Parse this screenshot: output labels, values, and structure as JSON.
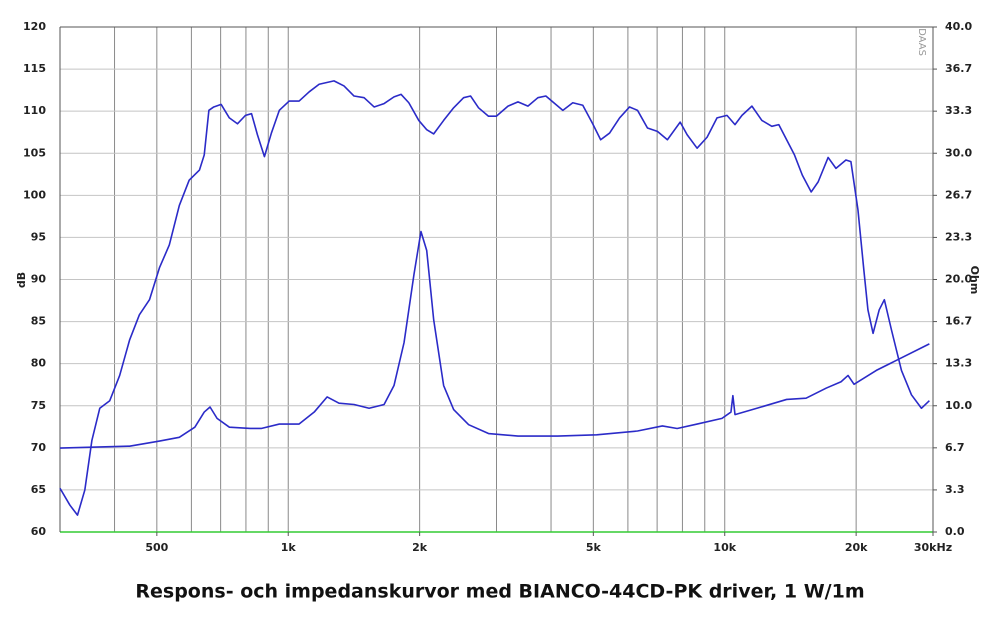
{
  "chart_data": {
    "type": "line",
    "title": "Respons- och impedanskurvor med BIANCO-44CD-PK driver, 1 W/1m",
    "y_label": "dB",
    "y2_label": "Ohm",
    "watermark": "DAAS",
    "log_x": true,
    "xlim": [
      300,
      30000
    ],
    "xticks": [
      500,
      {
        "value": 1000,
        "label": "1k"
      },
      {
        "value": 2000,
        "label": "2k"
      },
      {
        "value": 5000,
        "label": "5k"
      },
      {
        "value": 10000,
        "label": "10k"
      },
      {
        "value": 20000,
        "label": "20k"
      },
      {
        "value": 30000,
        "label": "30kHz"
      }
    ],
    "xgrid": [
      300,
      400,
      500,
      600,
      700,
      800,
      900,
      1000,
      2000,
      3000,
      4000,
      5000,
      6000,
      7000,
      8000,
      9000,
      10000,
      20000,
      30000
    ],
    "ylim": [
      60,
      120
    ],
    "yticks": [
      60,
      65,
      70,
      75,
      80,
      85,
      90,
      95,
      100,
      105,
      110,
      115,
      120
    ],
    "y2lim": [
      0,
      40
    ],
    "y2ticks": [
      {
        "value": 0,
        "label": "0.0"
      },
      {
        "value": 3.333,
        "label": "3.3"
      },
      {
        "value": 6.667,
        "label": "6.7"
      },
      {
        "value": 10,
        "label": "10.0"
      },
      {
        "value": 13.333,
        "label": "13.3"
      },
      {
        "value": 16.667,
        "label": "16.7"
      },
      {
        "value": 20,
        "label": "20.0"
      },
      {
        "value": 23.333,
        "label": "23.3"
      },
      {
        "value": 26.667,
        "label": "26.7"
      },
      {
        "value": 30,
        "label": "30.0"
      },
      {
        "value": 33.333,
        "label": "33.3"
      },
      {
        "value": 36.667,
        "label": "36.7"
      },
      {
        "value": 40,
        "label": "40.0"
      }
    ],
    "grid": true,
    "series": [
      {
        "color": "#2b2bc8",
        "x": [
          300,
          316,
          329,
          342,
          355,
          370,
          390,
          411,
          433,
          456,
          481,
          507,
          534,
          563,
          593,
          626,
          642,
          658,
          675,
          702,
          733,
          765,
          798,
          824,
          850,
          882,
          915,
          954,
          1005,
          1059,
          1117,
          1177,
          1273,
          1342,
          1415,
          1492,
          1573,
          1658,
          1747,
          1813,
          1889,
          1991,
          2076,
          2154,
          2270,
          2393,
          2522,
          2617,
          2729,
          2876,
          2997,
          3188,
          3360,
          3541,
          3732,
          3892,
          4059,
          4257,
          4486,
          4729,
          4983,
          5197,
          5448,
          5742,
          6052,
          6312,
          6653,
          7011,
          7390,
          7905,
          8201,
          8643,
          9110,
          9601,
          10119,
          10556,
          10951,
          11542,
          12164,
          12820,
          13300,
          13861,
          14446,
          15056,
          15780,
          16369,
          17253,
          17982,
          18953,
          19456,
          20190,
          20833,
          21284,
          21868,
          22590,
          23210,
          24101,
          25402,
          26776,
          28222,
          29430
        ],
        "values": [
          65.2,
          63.2,
          62.0,
          65,
          70.9,
          74.7,
          75.6,
          78.6,
          82.8,
          85.8,
          87.6,
          91.4,
          94.1,
          98.8,
          101.8,
          103,
          104.8,
          110.1,
          110.5,
          110.8,
          109.2,
          108.5,
          109.5,
          109.7,
          107.2,
          104.6,
          107.4,
          110.1,
          111.2,
          111.2,
          112.3,
          113.2,
          113.6,
          113.0,
          111.8,
          111.6,
          110.5,
          110.9,
          111.7,
          112.0,
          111.0,
          108.9,
          107.8,
          107.3,
          108.9,
          110.4,
          111.6,
          111.8,
          110.4,
          109.4,
          109.4,
          110.6,
          111.1,
          110.6,
          111.6,
          111.8,
          111.0,
          110.1,
          111.0,
          110.7,
          108.5,
          106.6,
          107.4,
          109.2,
          110.5,
          110.1,
          108.0,
          107.6,
          106.6,
          108.7,
          107.2,
          105.6,
          106.9,
          109.2,
          109.5,
          108.4,
          109.5,
          110.6,
          108.9,
          108.2,
          108.4,
          106.6,
          104.8,
          102.4,
          100.4,
          101.6,
          104.5,
          103.2,
          104.2,
          104.0,
          98.3,
          91.1,
          86.4,
          83.6,
          86.4,
          87.6,
          84.0,
          79.2,
          76.3,
          74.7,
          75.6
        ]
      },
      {
        "color": "#2b2bc8",
        "axis": "y2",
        "x": [
          300,
          433,
          507,
          563,
          611,
          642,
          662,
          687,
          733,
          818,
          867,
          954,
          1059,
          1147,
          1228,
          1307,
          1415,
          1532,
          1658,
          1747,
          1842,
          1941,
          2014,
          2076,
          2154,
          2270,
          2393,
          2590,
          2876,
          3360,
          4145,
          5089,
          6312,
          7197,
          7781,
          8643,
          9855,
          10333,
          10439,
          10556,
          11848,
          13861,
          15359,
          17090,
          18472,
          19164,
          19780,
          22247,
          24745,
          29430
        ],
        "values": [
          6.65,
          6.8,
          7.2,
          7.5,
          8.3,
          9.5,
          9.9,
          9.0,
          8.3,
          8.2,
          8.2,
          8.55,
          8.55,
          9.5,
          10.7,
          10.2,
          10.1,
          9.8,
          10.1,
          11.6,
          15.0,
          20.4,
          23.8,
          22.3,
          16.8,
          11.6,
          9.7,
          8.5,
          7.8,
          7.6,
          7.6,
          7.7,
          8.0,
          8.4,
          8.2,
          8.55,
          9.0,
          9.5,
          10.8,
          9.3,
          9.8,
          10.5,
          10.6,
          11.4,
          11.9,
          12.4,
          11.7,
          12.8,
          13.6,
          14.9
        ]
      }
    ]
  }
}
